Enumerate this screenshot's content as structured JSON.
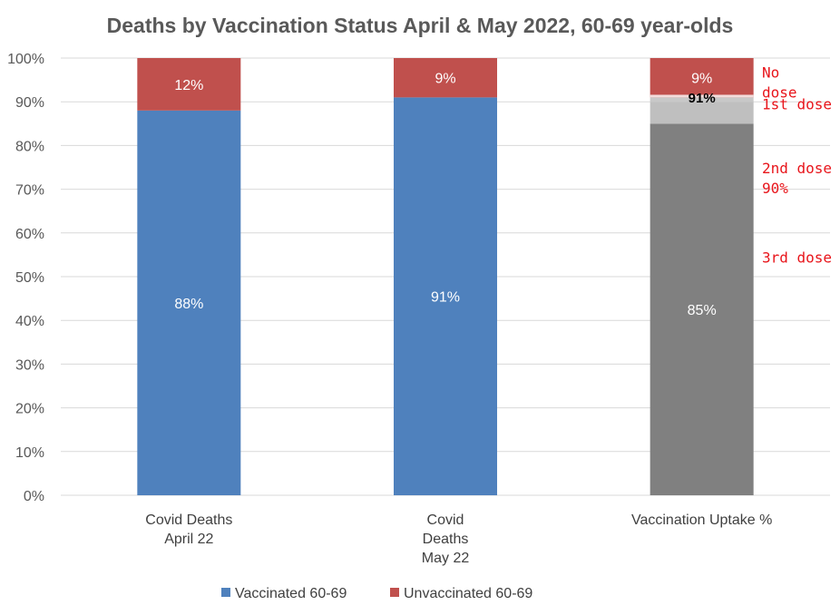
{
  "chart_data": {
    "type": "bar",
    "stacked": true,
    "title": "Deaths by Vaccination Status April & May 2022, 60-69 year-olds",
    "categories": [
      "Covid Deaths April 22",
      "Covid Deaths May 22",
      "Vaccination Uptake %"
    ],
    "category_lines": [
      [
        "Covid Deaths",
        "April 22"
      ],
      [
        "Covid",
        "Deaths",
        "May 22"
      ],
      [
        "Vaccination Uptake %"
      ]
    ],
    "y_ticks": [
      "0%",
      "10%",
      "20%",
      "30%",
      "40%",
      "50%",
      "60%",
      "70%",
      "80%",
      "90%",
      "100%"
    ],
    "ylim": [
      0,
      100
    ],
    "grid": true,
    "legend_position": "bottom",
    "colors": {
      "vaccinated": "#4f81bd",
      "unvaccinated": "#c0504d",
      "third_dose": "#808080",
      "first_second_dose": "#bfbfbf",
      "no_dose_gap": "#f2dcdb",
      "annotation": "#e8151b"
    },
    "series": [
      {
        "name": "Vaccinated 60-69",
        "values": [
          88,
          91,
          null
        ],
        "labels": [
          "88%",
          "91%",
          ""
        ]
      },
      {
        "name": "Unvaccinated 60-69",
        "values": [
          12,
          9,
          9
        ],
        "labels": [
          "12%",
          "9%",
          "9%"
        ]
      }
    ],
    "uptake_segments": [
      {
        "key": "third",
        "from": 0,
        "to": 85,
        "color": "#808080",
        "label": "85%"
      },
      {
        "key": "second",
        "from": 85,
        "to": 90,
        "color": "#bfbfbf",
        "label": ""
      },
      {
        "key": "first",
        "from": 90,
        "to": 91,
        "color": "#c8c8c8",
        "label": "91%"
      },
      {
        "key": "nodose",
        "from": 91,
        "to": 100,
        "color": "#c0504d",
        "label": "9%"
      }
    ],
    "annotations": [
      {
        "lines": [
          "No",
          "dose"
        ],
        "y": 95.5
      },
      {
        "lines": [
          "1st dose"
        ],
        "y": 88.3
      },
      {
        "lines": [
          "2nd dose",
          "90%"
        ],
        "y": 73.6
      },
      {
        "lines": [
          "3rd dose"
        ],
        "y": 53.2
      }
    ]
  }
}
